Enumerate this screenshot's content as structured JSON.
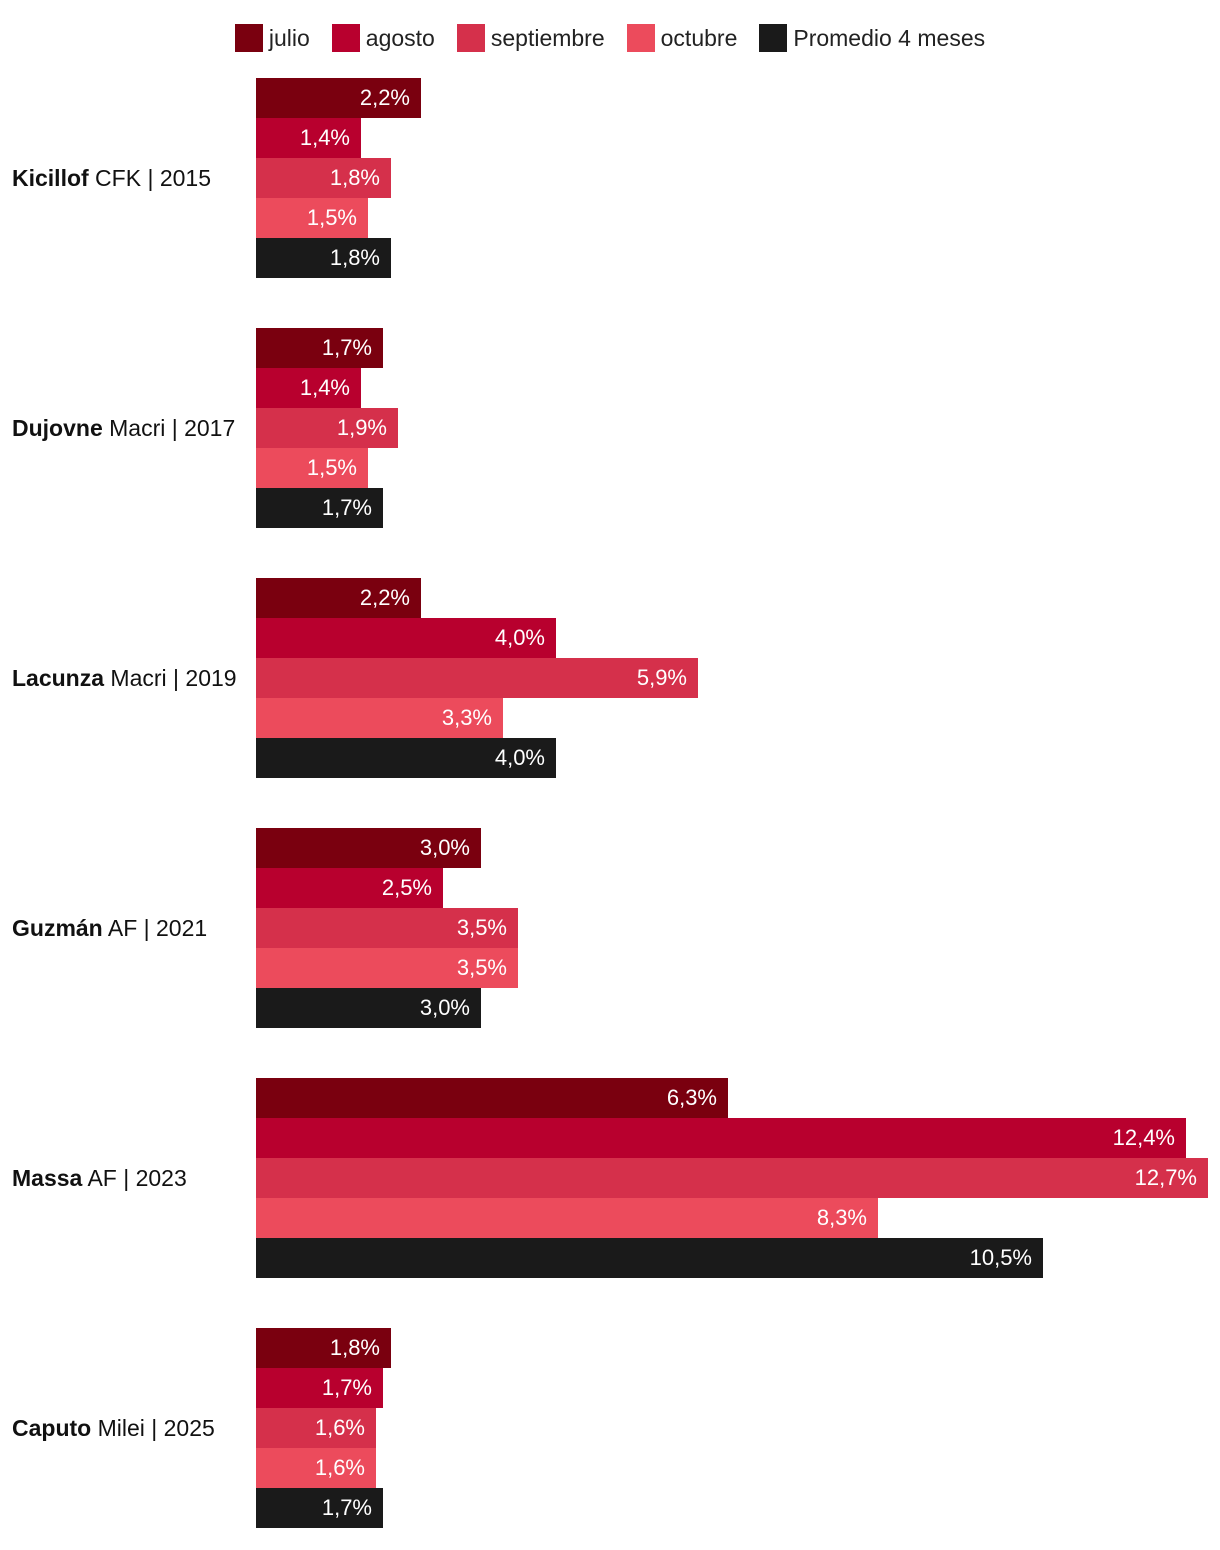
{
  "chart_data": {
    "type": "bar",
    "orientation": "horizontal",
    "title": "",
    "xlabel": "",
    "ylabel": "",
    "value_suffix": "%",
    "xlim": [
      0,
      12.7
    ],
    "grid": false,
    "legend_position": "top-center",
    "series_names": [
      "julio",
      "agosto",
      "septiembre",
      "octubre",
      "Promedio 4 meses"
    ],
    "series_colors": [
      "#7a000f",
      "#b8002e",
      "#d5304b",
      "#ec4b5c",
      "#1a1a1a"
    ],
    "groups": [
      {
        "name": "Kicillof",
        "detail": "CFK | 2015",
        "values": [
          2.2,
          1.4,
          1.8,
          1.5,
          1.8
        ],
        "labels": [
          "2,2%",
          "1,4%",
          "1,8%",
          "1,5%",
          "1,8%"
        ]
      },
      {
        "name": "Dujovne",
        "detail": "Macri | 2017",
        "values": [
          1.7,
          1.4,
          1.9,
          1.5,
          1.7
        ],
        "labels": [
          "1,7%",
          "1,4%",
          "1,9%",
          "1,5%",
          "1,7%"
        ]
      },
      {
        "name": "Lacunza",
        "detail": "Macri | 2019",
        "values": [
          2.2,
          4.0,
          5.9,
          3.3,
          4.0
        ],
        "labels": [
          "2,2%",
          "4,0%",
          "5,9%",
          "3,3%",
          "4,0%"
        ]
      },
      {
        "name": "Guzmán",
        "detail": "AF | 2021",
        "values": [
          3.0,
          2.5,
          3.5,
          3.5,
          3.0
        ],
        "labels": [
          "3,0%",
          "2,5%",
          "3,5%",
          "3,5%",
          "3,0%"
        ]
      },
      {
        "name": "Massa",
        "detail": "AF | 2023",
        "values": [
          6.3,
          12.4,
          12.7,
          8.3,
          10.5
        ],
        "labels": [
          "6,3%",
          "12,4%",
          "12,7%",
          "8,3%",
          "10,5%"
        ]
      },
      {
        "name": "Caputo",
        "detail": "Milei | 2025",
        "values": [
          1.8,
          1.7,
          1.6,
          1.6,
          1.7
        ],
        "labels": [
          "1,8%",
          "1,7%",
          "1,6%",
          "1,6%",
          "1,7%"
        ]
      }
    ]
  }
}
